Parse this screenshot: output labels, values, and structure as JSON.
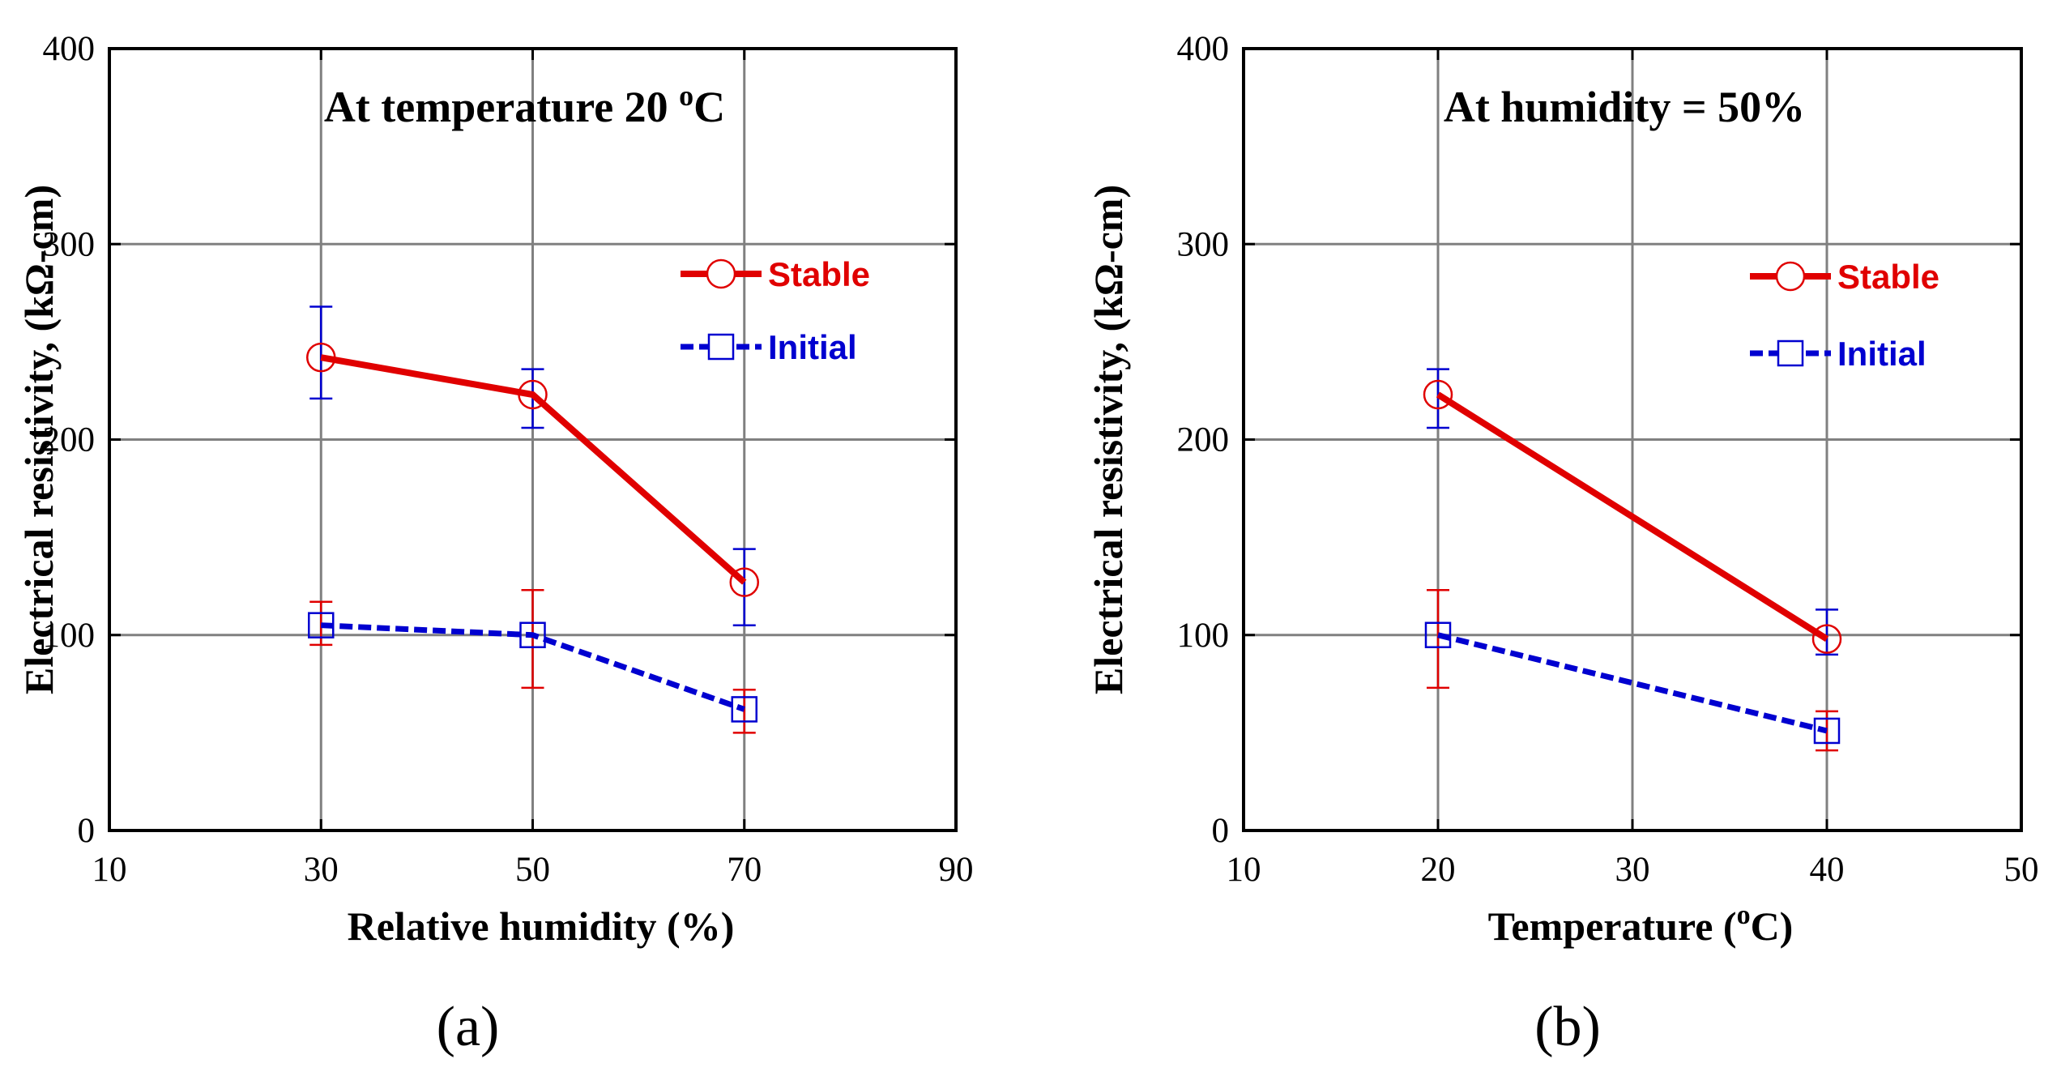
{
  "colors": {
    "stable": "#e00000",
    "initial": "#0000d0",
    "grid": "#808080",
    "axis": "#000000"
  },
  "chart_data": [
    {
      "type": "line",
      "panel": "a",
      "panel_label": "(a)",
      "title_main": "At temperature 20 ",
      "title_sup": "o",
      "title_end": "C",
      "xlabel": "Relative humidity (%)",
      "ylabel": "Electrical resistivity,  (kΩ-cm)",
      "xlim": [
        10,
        90
      ],
      "ylim": [
        0,
        400
      ],
      "xticks": [
        10,
        30,
        50,
        70,
        90
      ],
      "yticks": [
        0,
        100,
        200,
        300,
        400
      ],
      "grid": true,
      "legend_position": "upper-right",
      "series": [
        {
          "name": "Stable",
          "style": "solid",
          "marker": "circle",
          "x": [
            30,
            50,
            70
          ],
          "y": [
            242,
            223,
            127
          ],
          "err_low": [
            221,
            206,
            105
          ],
          "err_high": [
            268,
            236,
            144
          ],
          "err_color": "initial"
        },
        {
          "name": "Initial",
          "style": "dashed",
          "marker": "square",
          "x": [
            30,
            50,
            70
          ],
          "y": [
            105,
            100,
            62
          ],
          "err_low": [
            95,
            73,
            50
          ],
          "err_high": [
            117,
            123,
            72
          ],
          "err_color": "stable"
        }
      ]
    },
    {
      "type": "line",
      "panel": "b",
      "panel_label": "(b)",
      "title_main": "At humidity = 50%",
      "title_sup": "",
      "title_end": "",
      "xlabel_main": "Temperature (",
      "xlabel_sup": "o",
      "xlabel_end": "C)",
      "ylabel": "Electrical resistivity,  (kΩ-cm)",
      "xlim": [
        10,
        50
      ],
      "ylim": [
        0,
        400
      ],
      "xticks": [
        10,
        20,
        30,
        40,
        50
      ],
      "yticks": [
        0,
        100,
        200,
        300,
        400
      ],
      "grid": true,
      "legend_position": "upper-right",
      "series": [
        {
          "name": "Stable",
          "style": "solid",
          "marker": "circle",
          "x": [
            20,
            40
          ],
          "y": [
            223,
            98
          ],
          "err_low": [
            206,
            90
          ],
          "err_high": [
            236,
            113
          ],
          "err_color": "initial"
        },
        {
          "name": "Initial",
          "style": "dashed",
          "marker": "square",
          "x": [
            20,
            40
          ],
          "y": [
            100,
            51
          ],
          "err_low": [
            73,
            41
          ],
          "err_high": [
            123,
            61
          ],
          "err_color": "stable"
        }
      ]
    }
  ]
}
